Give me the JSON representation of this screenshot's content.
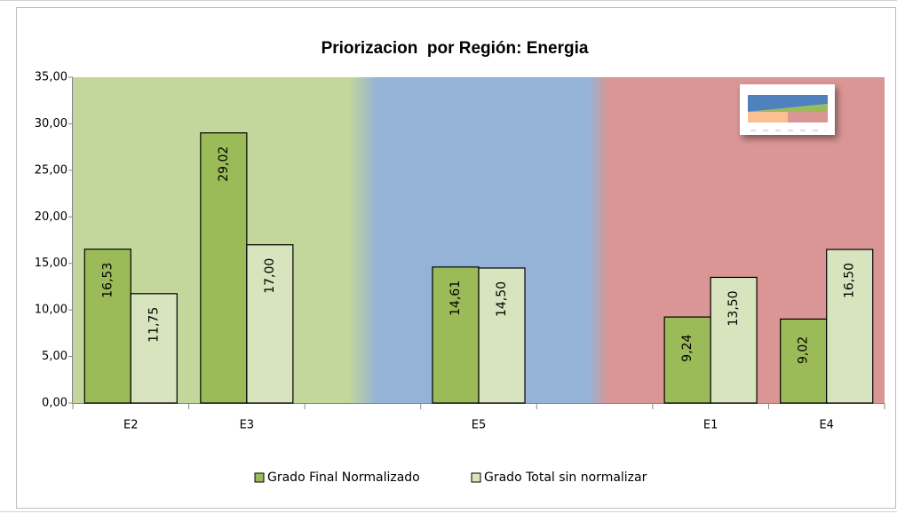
{
  "chart_data": {
    "type": "bar",
    "title": "Priorizacion  por Región: Energia",
    "categories": [
      "E2",
      "E3",
      null,
      "E5",
      null,
      "E1",
      "E4"
    ],
    "series": [
      {
        "name": "Grado Final Normalizado",
        "color": "#9bbb59",
        "values": [
          16.53,
          29.02,
          null,
          14.61,
          null,
          9.24,
          9.02
        ],
        "value_labels": [
          "16,53",
          "29,02",
          null,
          "14,61",
          null,
          "9,24",
          "9,02"
        ]
      },
      {
        "name": "Grado Total sin normalizar",
        "color": "#d7e4bd",
        "values": [
          11.75,
          17.0,
          null,
          14.5,
          null,
          13.5,
          16.5
        ],
        "value_labels": [
          "11,75",
          "17,00",
          null,
          "14,50",
          null,
          "13,50",
          "16,50"
        ]
      }
    ],
    "ylim": [
      0,
      35
    ],
    "yticks": [
      {
        "value": 0,
        "label": "0,00"
      },
      {
        "value": 5,
        "label": "5,00"
      },
      {
        "value": 10,
        "label": "10,00"
      },
      {
        "value": 15,
        "label": "15,00"
      },
      {
        "value": 20,
        "label": "20,00"
      },
      {
        "value": 25,
        "label": "25,00"
      },
      {
        "value": 30,
        "label": "30,00"
      },
      {
        "value": 35,
        "label": "35,00"
      }
    ],
    "legend": "bottom"
  }
}
